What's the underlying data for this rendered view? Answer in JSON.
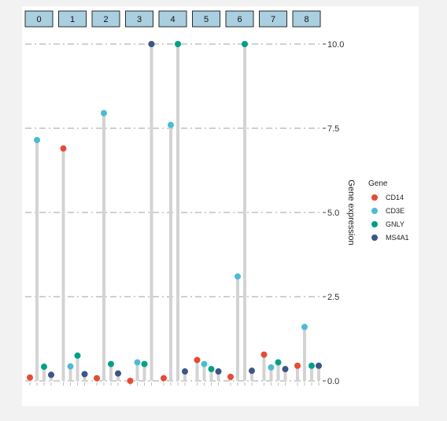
{
  "chart_data": {
    "type": "lollipop",
    "facets": [
      "0",
      "1",
      "2",
      "3",
      "4",
      "5",
      "6",
      "7",
      "8"
    ],
    "genes": [
      "CD14",
      "CD3E",
      "GNLY",
      "MS4A1"
    ],
    "colors": {
      "CD14": "#E64B35",
      "CD3E": "#4DBBD5",
      "GNLY": "#00A087",
      "MS4A1": "#3C5488"
    },
    "values": [
      [
        0.1,
        7.15,
        0.42,
        0.18
      ],
      [
        6.9,
        0.43,
        0.75,
        0.2
      ],
      [
        0.08,
        7.95,
        0.5,
        0.22
      ],
      [
        0.0,
        0.55,
        0.5,
        10.0
      ],
      [
        0.08,
        7.6,
        10.0,
        0.28
      ],
      [
        0.62,
        0.5,
        0.35,
        0.28
      ],
      [
        0.12,
        3.1,
        10.0,
        0.3
      ],
      [
        0.78,
        0.4,
        0.55,
        0.35
      ],
      [
        0.45,
        1.6,
        0.45,
        0.45
      ]
    ],
    "y_label": "Gene expression",
    "y_ticks": [
      "0.0",
      "2.5",
      "5.0",
      "7.5",
      "10.0"
    ],
    "y_tick_values": [
      0,
      2.5,
      5,
      7.5,
      10
    ],
    "ylim": [
      0,
      10
    ],
    "legend_title": "Gene",
    "legend_position": "right",
    "grid": "dashed horizontal"
  }
}
